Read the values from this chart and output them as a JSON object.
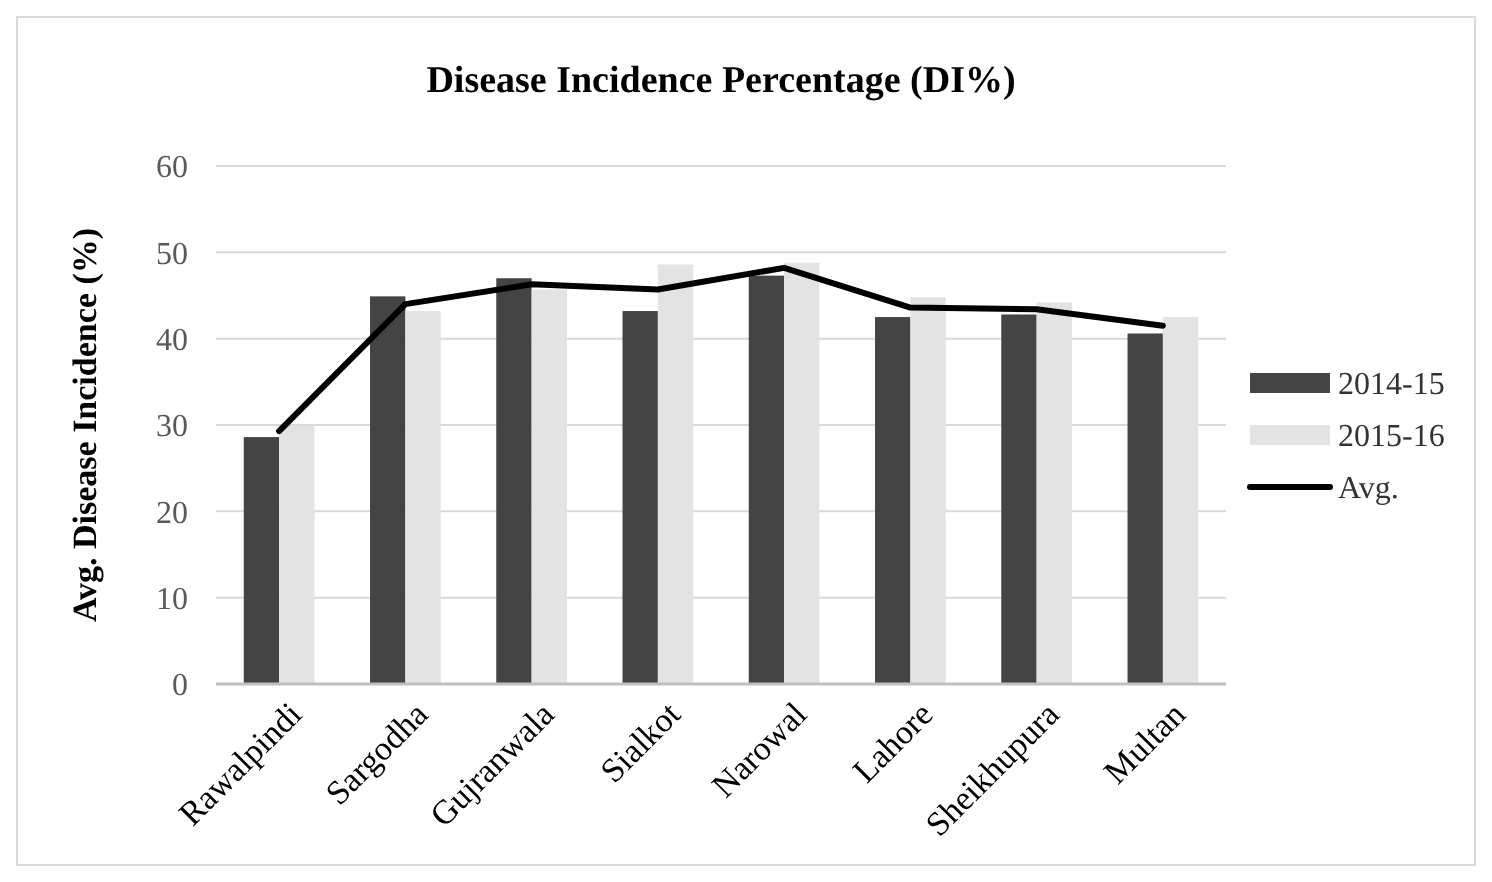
{
  "chart_data": {
    "type": "bar",
    "title": "Disease Incidence Percentage (DI%)",
    "ylabel": "Avg. Disease Incidence (%)",
    "categories": [
      "Rawalpindi",
      "Sargodha",
      "Gujranwala",
      "Sialkot",
      "Narowal",
      "Lahore",
      "Sheikhupura",
      "Multan"
    ],
    "series": [
      {
        "name": "2014-15",
        "color": "#444444",
        "values": [
          28.6,
          44.9,
          47.0,
          43.2,
          47.3,
          42.5,
          42.8,
          40.6
        ]
      },
      {
        "name": "2015-16",
        "color": "#e3e3e3",
        "values": [
          29.9,
          43.2,
          45.7,
          48.6,
          48.8,
          44.8,
          44.2,
          42.5
        ]
      },
      {
        "name": "Avg.",
        "type": "line",
        "color": "#000000",
        "values": [
          29.3,
          44.0,
          46.3,
          45.7,
          48.2,
          43.6,
          43.4,
          41.5
        ]
      }
    ],
    "ylim": [
      0,
      60
    ],
    "yticks": [
      0,
      10,
      20,
      30,
      40,
      50,
      60
    ],
    "grid": "y",
    "legend": "right"
  }
}
